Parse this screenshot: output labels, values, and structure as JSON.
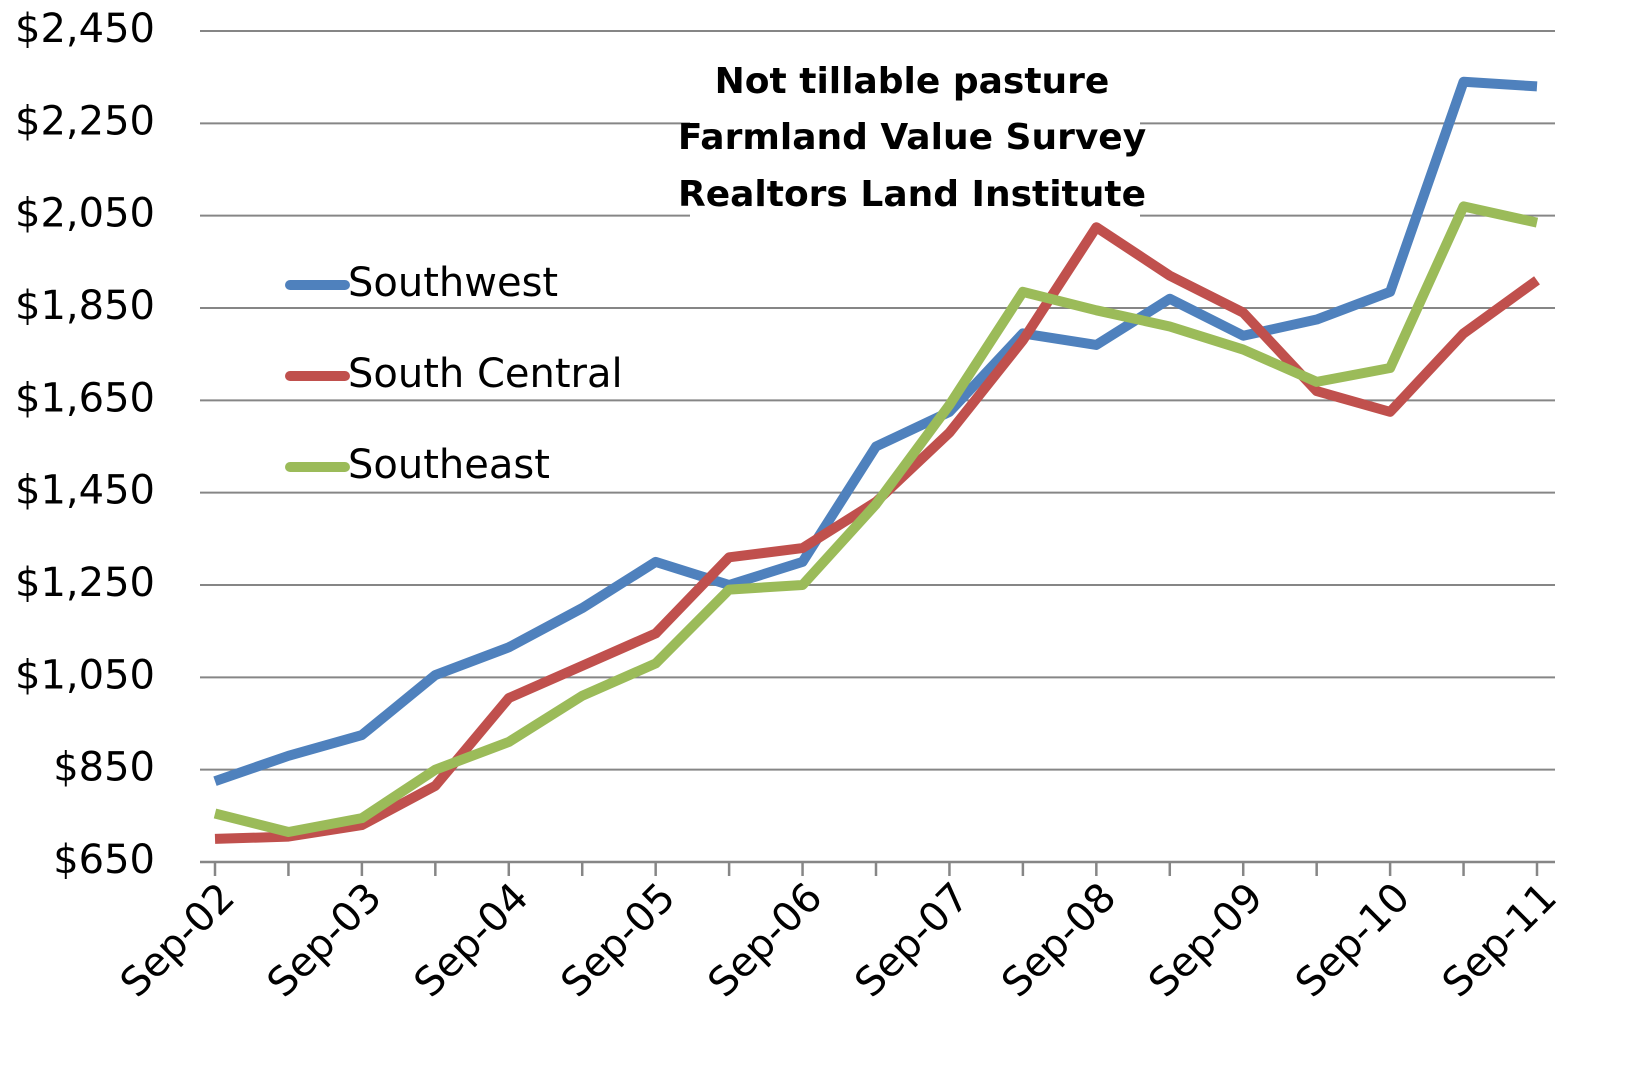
{
  "chart_data": {
    "type": "line",
    "annotation": [
      "Not tillable pasture",
      "Farmland Value Survey",
      "Realtors Land Institute"
    ],
    "categories": [
      "Sep-02",
      null,
      "Sep-03",
      null,
      "Sep-04",
      null,
      "Sep-05",
      null,
      "Sep-06",
      null,
      "Sep-07",
      null,
      "Sep-08",
      null,
      "Sep-09",
      null,
      "Sep-10",
      null,
      "Sep-11"
    ],
    "series": [
      {
        "name": "Southwest",
        "color": "#4f81bd",
        "values": [
          825,
          880,
          925,
          1055,
          1115,
          1200,
          1300,
          1250,
          1300,
          1550,
          1625,
          1795,
          1770,
          1870,
          1790,
          1825,
          1885,
          2340,
          2330
        ]
      },
      {
        "name": "South Central",
        "color": "#c0504d",
        "values": [
          700,
          705,
          730,
          815,
          1005,
          1075,
          1145,
          1310,
          1330,
          1430,
          1580,
          1780,
          2025,
          1920,
          1840,
          1670,
          1625,
          1795,
          1910
        ]
      },
      {
        "name": "Southeast",
        "color": "#9bbb59",
        "values": [
          755,
          715,
          745,
          850,
          910,
          1010,
          1080,
          1240,
          1250,
          1425,
          1640,
          1885,
          1845,
          1810,
          1760,
          1690,
          1720,
          2070,
          2035
        ]
      }
    ],
    "ylim": [
      650,
      2450
    ],
    "yticks": [
      {
        "value": 650,
        "label": "$650"
      },
      {
        "value": 850,
        "label": "$850"
      },
      {
        "value": 1050,
        "label": "$1,050"
      },
      {
        "value": 1250,
        "label": "$1,250"
      },
      {
        "value": 1450,
        "label": "$1,450"
      },
      {
        "value": 1650,
        "label": "$1,650"
      },
      {
        "value": 1850,
        "label": "$1,850"
      },
      {
        "value": 2050,
        "label": "$2,050"
      },
      {
        "value": 2250,
        "label": "$2,250"
      },
      {
        "value": 2450,
        "label": "$2,450"
      }
    ],
    "grid": true
  }
}
